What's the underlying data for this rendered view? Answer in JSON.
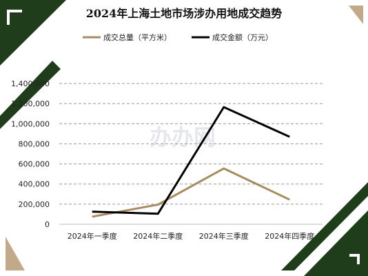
{
  "chart_data": {
    "type": "line",
    "title": "2024年上海土地市场涉办用地成交趋势",
    "categories": [
      "2024年一季度",
      "2024年二季度",
      "2024年三季度",
      "2024年四季度"
    ],
    "series": [
      {
        "name": "成交总量（平方米）",
        "color": "#A68B5F",
        "values": [
          75000,
          195000,
          555000,
          245000
        ]
      },
      {
        "name": "成交金额（万元）",
        "color": "#000000",
        "values": [
          125000,
          105000,
          1165000,
          870000
        ]
      }
    ],
    "yticks": [
      "0",
      "200,000",
      "400,000",
      "600,000",
      "800,000",
      "1,000,000",
      "1,200,000",
      "1,400,000"
    ],
    "ylim": [
      0,
      1400000
    ],
    "grid": true,
    "legend_position": "top",
    "watermark": "办办网"
  },
  "decor": {
    "dark_green": "#1F3D1A",
    "tan": "#C2A98A"
  }
}
